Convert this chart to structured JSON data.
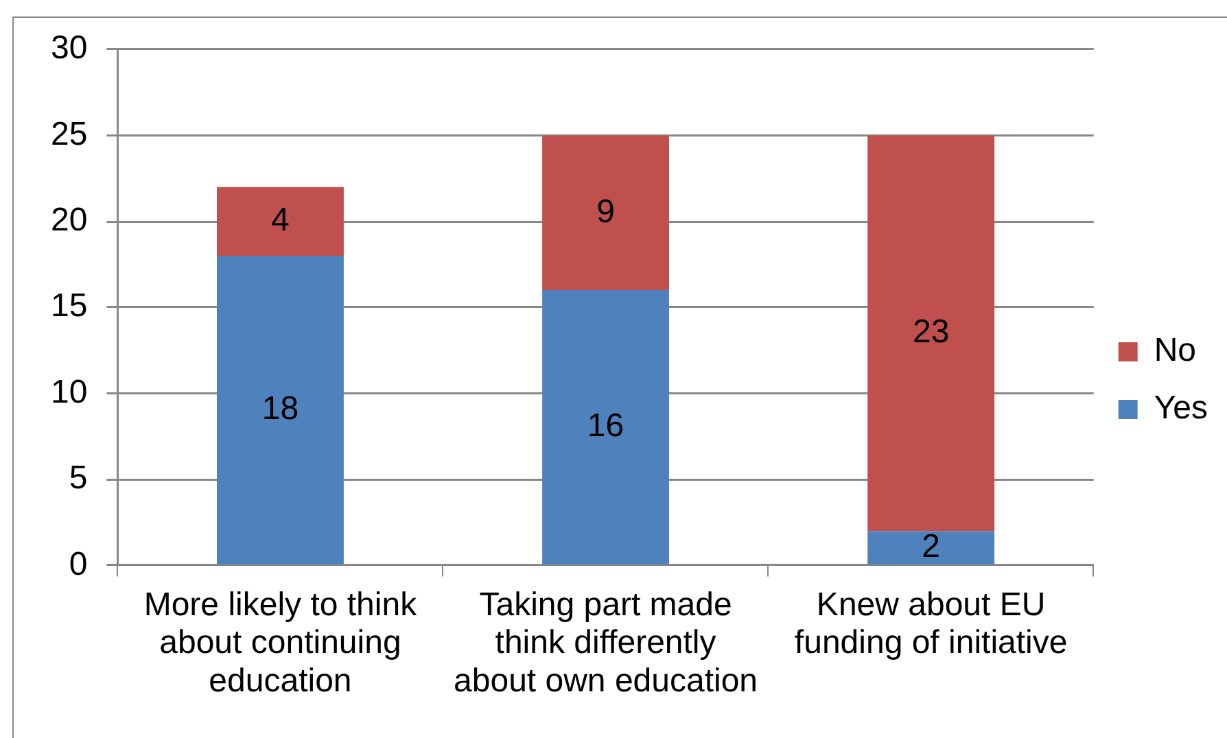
{
  "chart_data": {
    "type": "bar",
    "categories": [
      "More likely to think about continuing education",
      "Taking part made think differently about own education",
      "Knew about EU funding of initiative"
    ],
    "series": [
      {
        "name": "Yes",
        "color": "#4f81bd",
        "values": [
          18,
          16,
          2
        ]
      },
      {
        "name": "No",
        "color": "#c0504d",
        "values": [
          4,
          9,
          23
        ]
      }
    ],
    "stacked": true,
    "data_labels": true,
    "ylim": [
      0,
      30
    ],
    "yticks": [
      0,
      5,
      10,
      15,
      20,
      25,
      30
    ],
    "grid": "y",
    "legend": "right"
  }
}
